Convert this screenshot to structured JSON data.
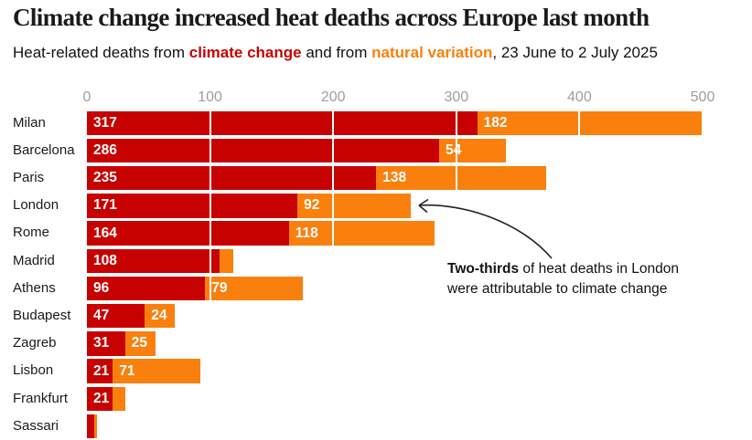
{
  "header": {
    "title": "Climate change increased heat deaths across Europe last month",
    "subtitle": {
      "prefix": "Heat-related deaths from ",
      "climate_label": "climate change",
      "middle": " and from ",
      "natural_label": "natural variation",
      "suffix": ", 23 June to 2 July 2025"
    }
  },
  "colors": {
    "climate_red": "#c70000",
    "natural_orange": "#f9800d",
    "axis_gray": "#9e9e9e",
    "text_dark": "#121212",
    "value_label_white": "#ffffff"
  },
  "chart_data": {
    "type": "bar",
    "orientation": "horizontal-stacked",
    "title": "Climate change increased heat deaths across Europe last month",
    "xlabel": "",
    "ylabel": "",
    "xlim": [
      0,
      512
    ],
    "grid": "white vertical gridlines over bars at each tick",
    "legend": "inline in subtitle (climate change = red, natural variation = orange)",
    "categories": [
      "Milan",
      "Barcelona",
      "Paris",
      "London",
      "Rome",
      "Madrid",
      "Athens",
      "Budapest",
      "Zagreb",
      "Lisbon",
      "Frankfurt",
      "Sassari"
    ],
    "series": [
      {
        "name": "climate change",
        "color_key": "climate_red",
        "values": [
          317,
          286,
          235,
          171,
          164,
          108,
          96,
          47,
          31,
          21,
          21,
          6
        ],
        "labels": [
          "317",
          "286",
          "235",
          "171",
          "164",
          "108",
          "96",
          "47",
          "31",
          "21",
          "21",
          ""
        ]
      },
      {
        "name": "natural variation",
        "color_key": "natural_orange",
        "values": [
          182,
          54,
          138,
          92,
          118,
          11,
          79,
          24,
          25,
          71,
          10,
          2
        ],
        "labels": [
          "182",
          "54",
          "138",
          "92",
          "118",
          "",
          "79",
          "24",
          "25",
          "71",
          "",
          ""
        ]
      }
    ],
    "x_axis": {
      "ticks": [
        0,
        100,
        200,
        300,
        400,
        500
      ],
      "max": 500
    }
  },
  "annotation": {
    "bold": "Two-thirds",
    "line1_rest": " of heat deaths in London",
    "line2": "were attributable to climate change"
  }
}
